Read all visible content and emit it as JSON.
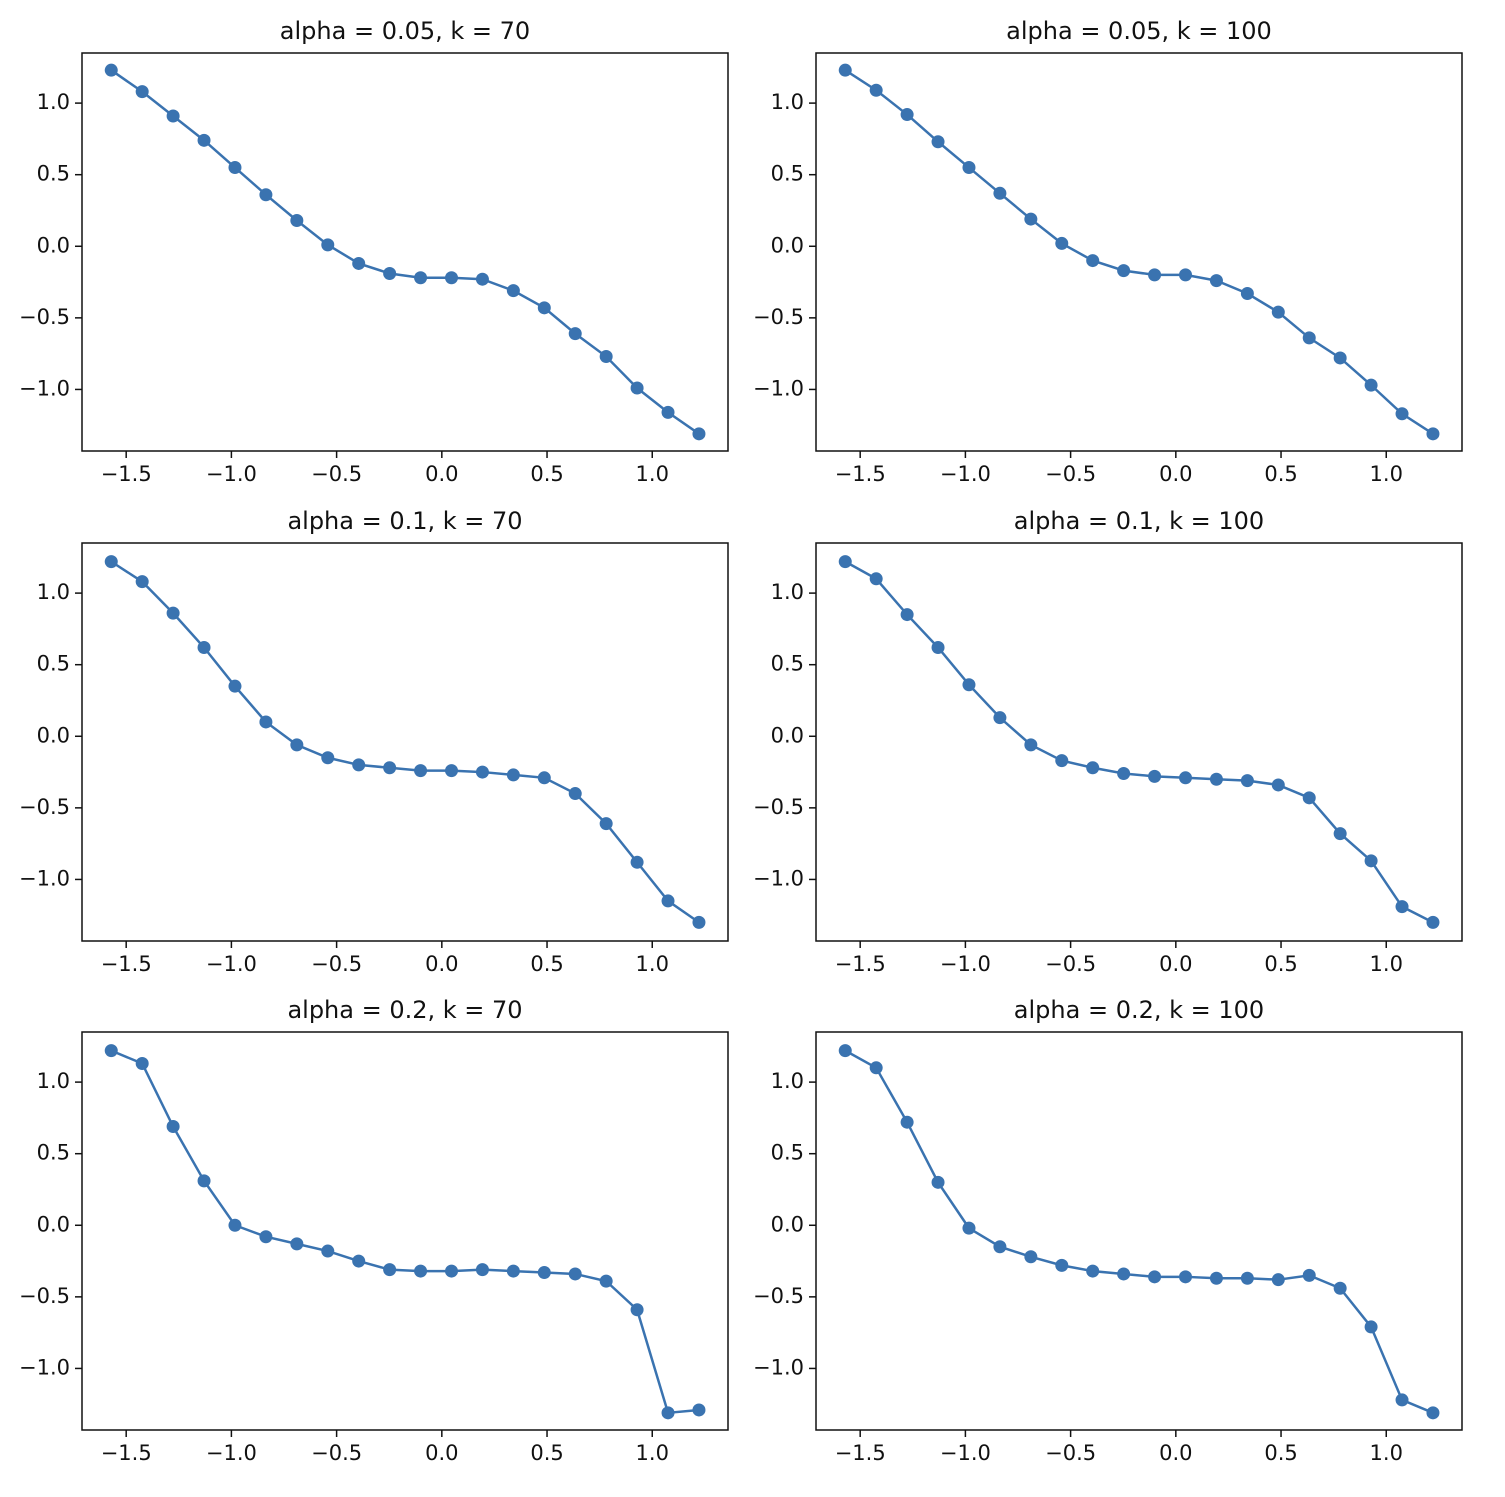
{
  "chart_data": [
    {
      "type": "line",
      "title": "alpha = 0.05, k = 70",
      "x": [
        -1.571,
        -1.424,
        -1.277,
        -1.13,
        -0.983,
        -0.836,
        -0.689,
        -0.542,
        -0.395,
        -0.248,
        -0.101,
        0.046,
        0.193,
        0.34,
        0.487,
        0.634,
        0.781,
        0.928,
        1.075,
        1.222
      ],
      "values": [
        1.23,
        1.08,
        0.91,
        0.74,
        0.55,
        0.36,
        0.18,
        0.01,
        -0.12,
        -0.19,
        -0.22,
        -0.22,
        -0.23,
        -0.31,
        -0.43,
        -0.61,
        -0.77,
        -0.99,
        -1.16,
        -1.31
      ],
      "color": "#3a73b0",
      "xlim": [
        -1.71,
        1.36
      ],
      "ylim": [
        -1.43,
        1.35
      ],
      "xticks": [
        {
          "value": -1.5,
          "label": "−1.5"
        },
        {
          "value": -1.0,
          "label": "−1.0"
        },
        {
          "value": -0.5,
          "label": "−0.5"
        },
        {
          "value": 0,
          "label": "0.0"
        },
        0.5,
        {
          "value": 1,
          "label": "1.0"
        }
      ],
      "yticks": [
        {
          "value": -1.0,
          "label": "−1.0"
        },
        {
          "value": -0.5,
          "label": "−0.5"
        },
        {
          "value": 0,
          "label": "0.0"
        },
        0.5,
        {
          "value": 1,
          "label": "1.0"
        }
      ]
    },
    {
      "type": "line",
      "title": "alpha = 0.05, k = 100",
      "x": [
        -1.571,
        -1.424,
        -1.277,
        -1.13,
        -0.983,
        -0.836,
        -0.689,
        -0.542,
        -0.395,
        -0.248,
        -0.101,
        0.046,
        0.193,
        0.34,
        0.487,
        0.634,
        0.781,
        0.928,
        1.075,
        1.222
      ],
      "values": [
        1.23,
        1.09,
        0.92,
        0.73,
        0.55,
        0.37,
        0.19,
        0.02,
        -0.1,
        -0.17,
        -0.2,
        -0.2,
        -0.24,
        -0.33,
        -0.46,
        -0.64,
        -0.78,
        -0.97,
        -1.17,
        -1.31
      ],
      "color": "#3a73b0",
      "xlim": [
        -1.71,
        1.36
      ],
      "ylim": [
        -1.43,
        1.35
      ],
      "xticks": [
        {
          "value": -1.5,
          "label": "−1.5"
        },
        {
          "value": -1.0,
          "label": "−1.0"
        },
        {
          "value": -0.5,
          "label": "−0.5"
        },
        {
          "value": 0,
          "label": "0.0"
        },
        0.5,
        {
          "value": 1,
          "label": "1.0"
        }
      ],
      "yticks": [
        {
          "value": -1.0,
          "label": "−1.0"
        },
        {
          "value": -0.5,
          "label": "−0.5"
        },
        {
          "value": 0,
          "label": "0.0"
        },
        0.5,
        {
          "value": 1,
          "label": "1.0"
        }
      ]
    },
    {
      "type": "line",
      "title": "alpha = 0.1, k = 70",
      "x": [
        -1.571,
        -1.424,
        -1.277,
        -1.13,
        -0.983,
        -0.836,
        -0.689,
        -0.542,
        -0.395,
        -0.248,
        -0.101,
        0.046,
        0.193,
        0.34,
        0.487,
        0.634,
        0.781,
        0.928,
        1.075,
        1.222
      ],
      "values": [
        1.22,
        1.08,
        0.86,
        0.62,
        0.35,
        0.1,
        -0.06,
        -0.15,
        -0.2,
        -0.22,
        -0.24,
        -0.24,
        -0.25,
        -0.27,
        -0.29,
        -0.4,
        -0.61,
        -0.88,
        -1.15,
        -1.3
      ],
      "color": "#3a73b0",
      "xlim": [
        -1.71,
        1.36
      ],
      "ylim": [
        -1.43,
        1.35
      ],
      "xticks": [
        {
          "value": -1.5,
          "label": "−1.5"
        },
        {
          "value": -1.0,
          "label": "−1.0"
        },
        {
          "value": -0.5,
          "label": "−0.5"
        },
        {
          "value": 0,
          "label": "0.0"
        },
        0.5,
        {
          "value": 1,
          "label": "1.0"
        }
      ],
      "yticks": [
        {
          "value": -1.0,
          "label": "−1.0"
        },
        {
          "value": -0.5,
          "label": "−0.5"
        },
        {
          "value": 0,
          "label": "0.0"
        },
        0.5,
        {
          "value": 1,
          "label": "1.0"
        }
      ]
    },
    {
      "type": "line",
      "title": "alpha = 0.1, k = 100",
      "x": [
        -1.571,
        -1.424,
        -1.277,
        -1.13,
        -0.983,
        -0.836,
        -0.689,
        -0.542,
        -0.395,
        -0.248,
        -0.101,
        0.046,
        0.193,
        0.34,
        0.487,
        0.634,
        0.781,
        0.928,
        1.075,
        1.222
      ],
      "values": [
        1.22,
        1.1,
        0.85,
        0.62,
        0.36,
        0.13,
        -0.06,
        -0.17,
        -0.22,
        -0.26,
        -0.28,
        -0.29,
        -0.3,
        -0.31,
        -0.34,
        -0.43,
        -0.68,
        -0.87,
        -1.19,
        -1.3
      ],
      "color": "#3a73b0",
      "xlim": [
        -1.71,
        1.36
      ],
      "ylim": [
        -1.43,
        1.35
      ],
      "xticks": [
        {
          "value": -1.5,
          "label": "−1.5"
        },
        {
          "value": -1.0,
          "label": "−1.0"
        },
        {
          "value": -0.5,
          "label": "−0.5"
        },
        {
          "value": 0,
          "label": "0.0"
        },
        0.5,
        {
          "value": 1,
          "label": "1.0"
        }
      ],
      "yticks": [
        {
          "value": -1.0,
          "label": "−1.0"
        },
        {
          "value": -0.5,
          "label": "−0.5"
        },
        {
          "value": 0,
          "label": "0.0"
        },
        0.5,
        {
          "value": 1,
          "label": "1.0"
        }
      ]
    },
    {
      "type": "line",
      "title": "alpha = 0.2, k = 70",
      "x": [
        -1.571,
        -1.424,
        -1.277,
        -1.13,
        -0.983,
        -0.836,
        -0.689,
        -0.542,
        -0.395,
        -0.248,
        -0.101,
        0.046,
        0.193,
        0.34,
        0.487,
        0.634,
        0.781,
        0.928,
        1.075,
        1.222
      ],
      "values": [
        1.22,
        1.13,
        0.69,
        0.31,
        0.0,
        -0.08,
        -0.13,
        -0.18,
        -0.25,
        -0.31,
        -0.32,
        -0.32,
        -0.31,
        -0.32,
        -0.33,
        -0.34,
        -0.39,
        -0.59,
        -1.31,
        -1.29
      ],
      "color": "#3a73b0",
      "xlim": [
        -1.71,
        1.36
      ],
      "ylim": [
        -1.43,
        1.35
      ],
      "xticks": [
        {
          "value": -1.5,
          "label": "−1.5"
        },
        {
          "value": -1.0,
          "label": "−1.0"
        },
        {
          "value": -0.5,
          "label": "−0.5"
        },
        {
          "value": 0,
          "label": "0.0"
        },
        0.5,
        {
          "value": 1,
          "label": "1.0"
        }
      ],
      "yticks": [
        {
          "value": -1.0,
          "label": "−1.0"
        },
        {
          "value": -0.5,
          "label": "−0.5"
        },
        {
          "value": 0,
          "label": "0.0"
        },
        0.5,
        {
          "value": 1,
          "label": "1.0"
        }
      ]
    },
    {
      "type": "line",
      "title": "alpha = 0.2, k = 100",
      "x": [
        -1.571,
        -1.424,
        -1.277,
        -1.13,
        -0.983,
        -0.836,
        -0.689,
        -0.542,
        -0.395,
        -0.248,
        -0.101,
        0.046,
        0.193,
        0.34,
        0.487,
        0.634,
        0.781,
        0.928,
        1.075,
        1.222
      ],
      "values": [
        1.22,
        1.1,
        0.72,
        0.3,
        -0.02,
        -0.15,
        -0.22,
        -0.28,
        -0.32,
        -0.34,
        -0.36,
        -0.36,
        -0.37,
        -0.37,
        -0.38,
        -0.35,
        -0.44,
        -0.71,
        -1.22,
        -1.31
      ],
      "color": "#3a73b0",
      "xlim": [
        -1.71,
        1.36
      ],
      "ylim": [
        -1.43,
        1.35
      ],
      "xticks": [
        {
          "value": -1.5,
          "label": "−1.5"
        },
        {
          "value": -1.0,
          "label": "−1.0"
        },
        {
          "value": -0.5,
          "label": "−0.5"
        },
        {
          "value": 0,
          "label": "0.0"
        },
        0.5,
        {
          "value": 1,
          "label": "1.0"
        }
      ],
      "yticks": [
        {
          "value": -1.0,
          "label": "−1.0"
        },
        {
          "value": -0.5,
          "label": "−0.5"
        },
        {
          "value": 0,
          "label": "0.0"
        },
        0.5,
        {
          "value": 1,
          "label": "1.0"
        }
      ]
    }
  ]
}
